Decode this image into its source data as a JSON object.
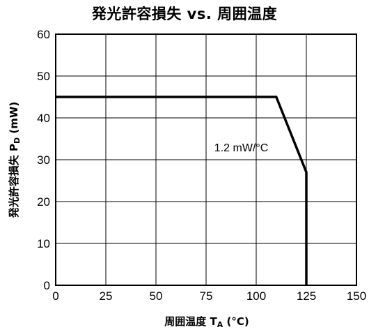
{
  "chart_data": {
    "type": "line",
    "title": "発光許容損失  vs. 周囲温度",
    "xlabel_main": "周囲温度 T",
    "xlabel_sub": "A",
    "xlabel_unit": " (°C)",
    "ylabel_main": "発光許容損失  P",
    "ylabel_sub": "D",
    "ylabel_unit": " (mW)",
    "xlim": [
      0,
      150
    ],
    "ylim": [
      0,
      60
    ],
    "xticks": [
      0,
      25,
      50,
      75,
      100,
      125,
      150
    ],
    "yticks": [
      0,
      10,
      20,
      30,
      40,
      50,
      60
    ],
    "grid": true,
    "series": [
      {
        "x": [
          0,
          110,
          125,
          125
        ],
        "y": [
          45,
          45,
          27,
          0
        ]
      }
    ],
    "annotations": [
      {
        "text": "1.2 mW/°C",
        "x": 110,
        "y": 32
      }
    ]
  }
}
